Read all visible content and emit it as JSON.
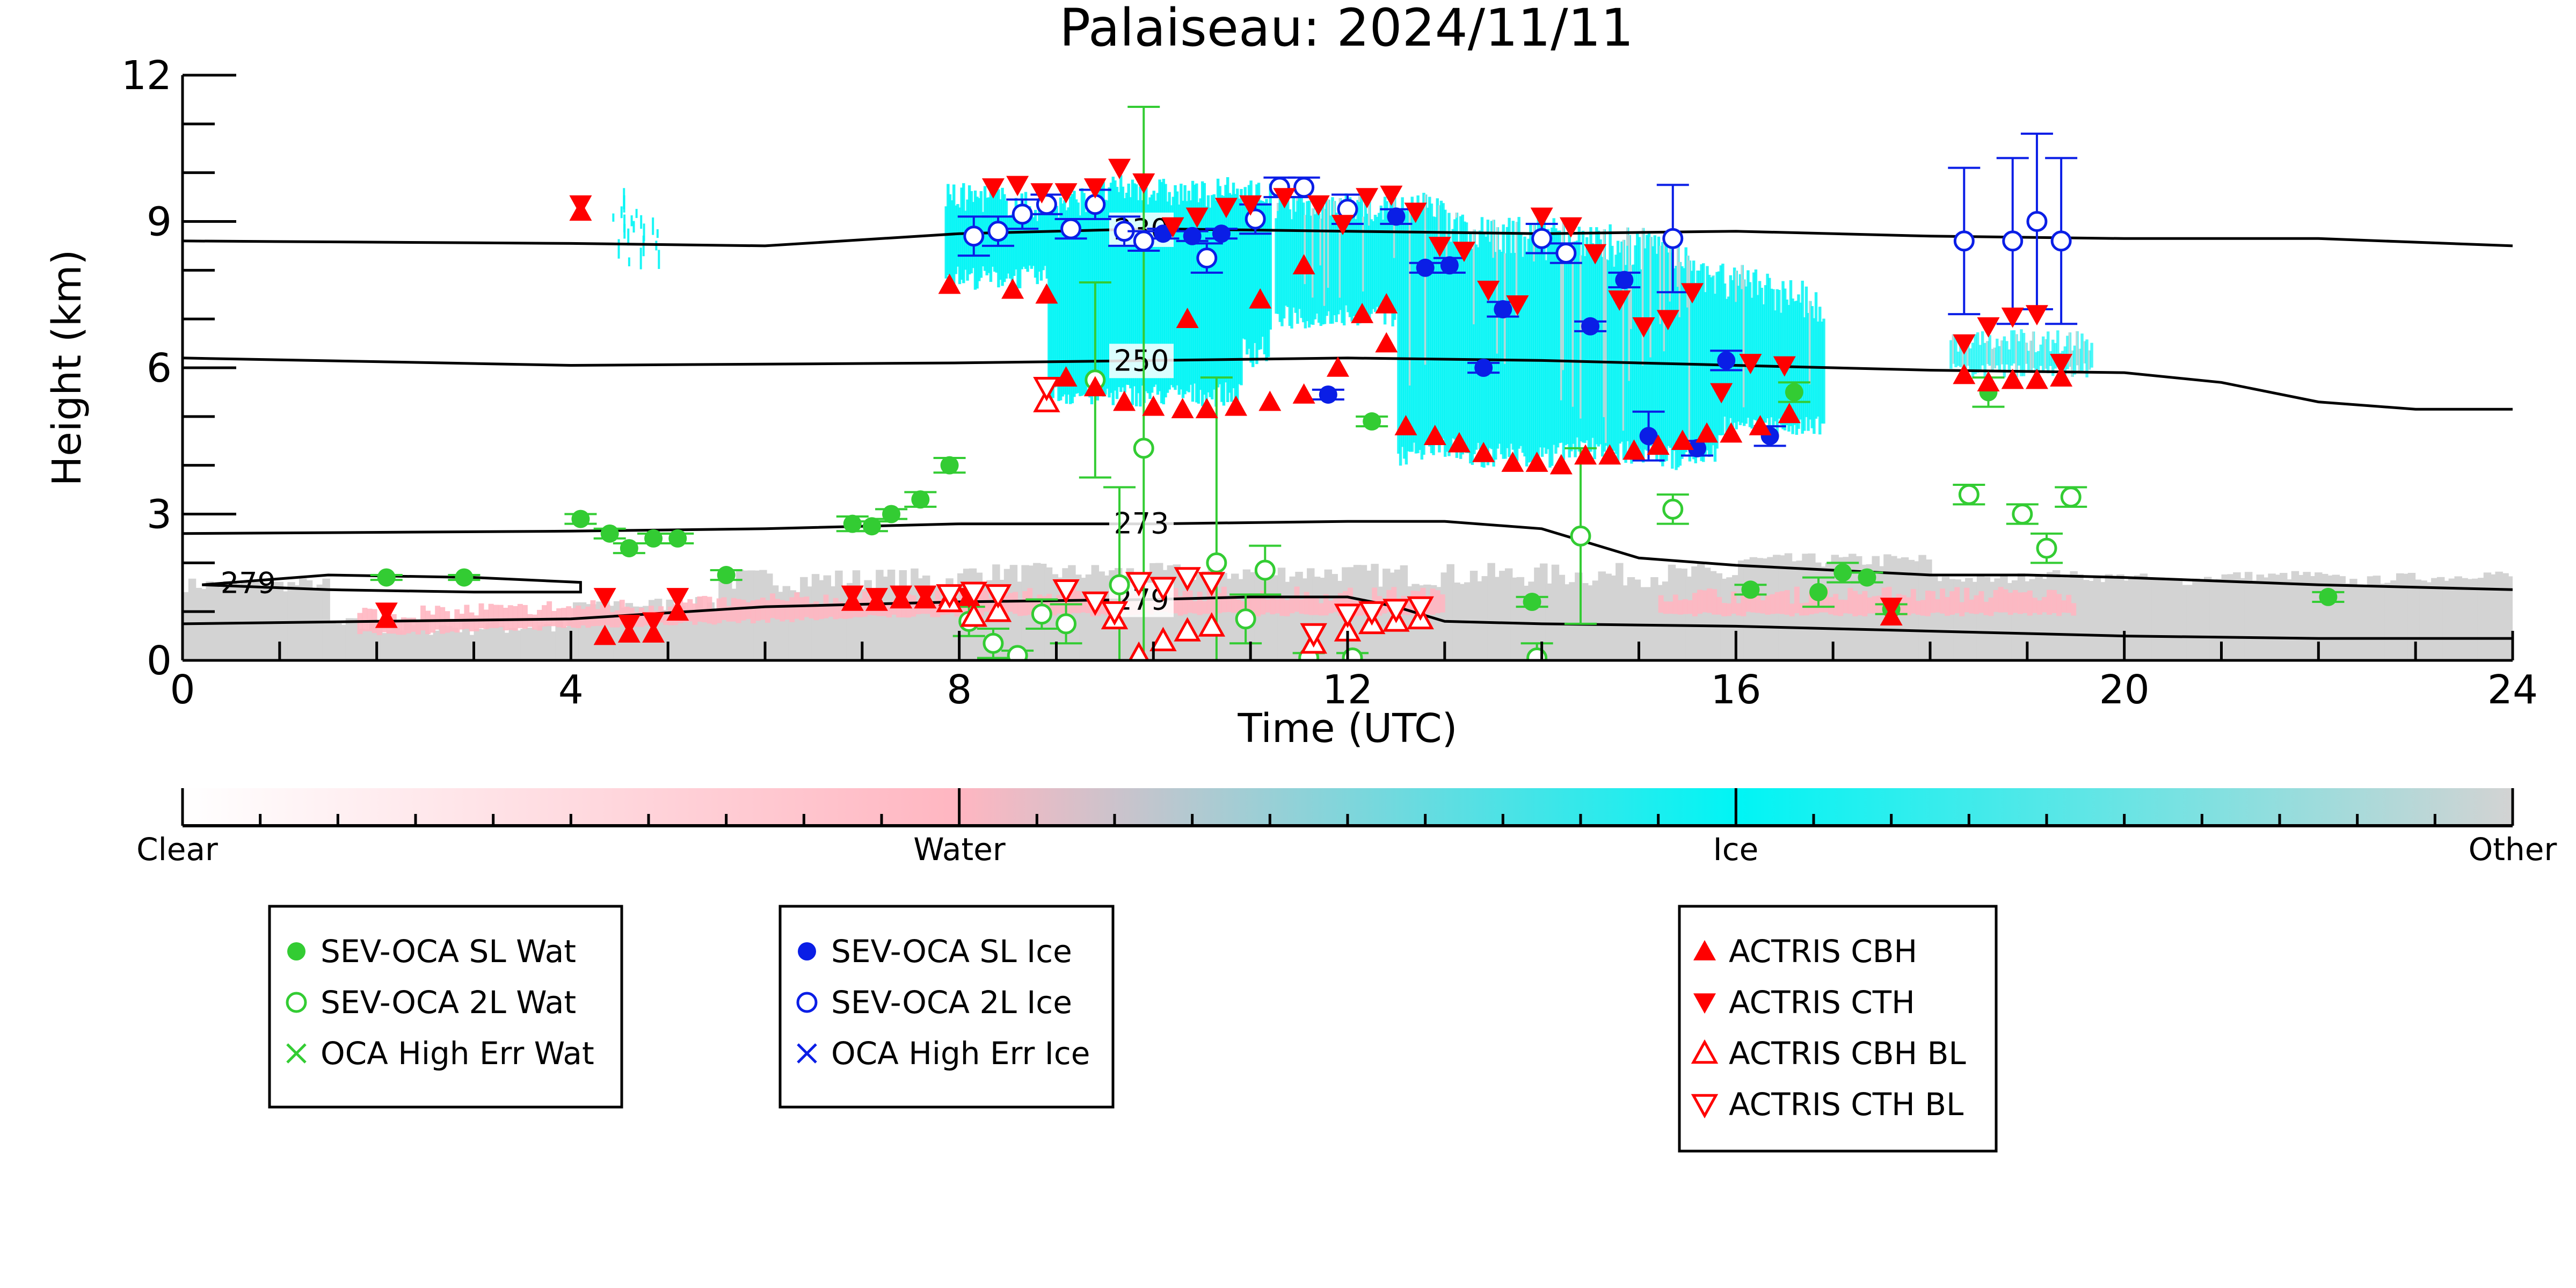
{
  "chart_data": {
    "type": "scatter",
    "title": "Palaiseau: 2024/11/11",
    "xlabel": "Time (UTC)",
    "ylabel": "Height (km)",
    "xlim": [
      0,
      24
    ],
    "ylim": [
      0,
      12
    ],
    "x_ticks": [
      "0",
      "4",
      "8",
      "12",
      "16",
      "20",
      "24"
    ],
    "y_ticks": [
      "0",
      "3",
      "6",
      "9",
      "12"
    ],
    "grid": false,
    "colorbar": {
      "labels": [
        "Clear",
        "Water",
        "Ice",
        "Other"
      ],
      "colors": [
        "#ffffff",
        "#ffb6c1",
        "#00f5f5",
        "#d3d3d3"
      ]
    },
    "legends": [
      {
        "placement": "bottom-left",
        "entries": [
          "SEV-OCA SL Wat",
          "SEV-OCA 2L Wat",
          "OCA High Err Wat"
        ]
      },
      {
        "placement": "bottom-center",
        "entries": [
          "SEV-OCA SL Ice",
          "SEV-OCA 2L Ice",
          "OCA High Err Ice"
        ]
      },
      {
        "placement": "bottom-right",
        "entries": [
          "ACTRIS CBH",
          "ACTRIS CTH",
          "ACTRIS CBH BL",
          "ACTRIS CTH BL"
        ]
      }
    ],
    "contours": [
      {
        "label": "230",
        "label_x": 9.6,
        "points": [
          [
            0,
            8.6
          ],
          [
            4,
            8.55
          ],
          [
            6,
            8.5
          ],
          [
            8,
            8.75
          ],
          [
            10,
            8.85
          ],
          [
            12,
            8.8
          ],
          [
            14,
            8.75
          ],
          [
            16,
            8.8
          ],
          [
            18,
            8.7
          ],
          [
            20,
            8.65
          ],
          [
            22,
            8.65
          ],
          [
            24,
            8.5
          ]
        ]
      },
      {
        "label": "250",
        "label_x": 9.6,
        "points": [
          [
            0,
            6.2
          ],
          [
            4,
            6.05
          ],
          [
            8,
            6.1
          ],
          [
            10,
            6.15
          ],
          [
            12,
            6.2
          ],
          [
            14,
            6.15
          ],
          [
            16,
            6.05
          ],
          [
            18,
            5.95
          ],
          [
            20,
            5.9
          ],
          [
            21,
            5.7
          ],
          [
            22,
            5.3
          ],
          [
            23,
            5.15
          ],
          [
            24,
            5.15
          ]
        ]
      },
      {
        "label": "273",
        "label_x": 9.6,
        "points": [
          [
            0,
            2.6
          ],
          [
            4,
            2.65
          ],
          [
            6,
            2.7
          ],
          [
            8,
            2.8
          ],
          [
            10,
            2.8
          ],
          [
            12,
            2.85
          ],
          [
            13,
            2.85
          ],
          [
            14,
            2.7
          ],
          [
            15,
            2.1
          ],
          [
            16,
            1.95
          ],
          [
            17,
            1.85
          ],
          [
            18,
            1.75
          ],
          [
            19,
            1.75
          ],
          [
            20,
            1.7
          ],
          [
            22,
            1.55
          ],
          [
            24,
            1.45
          ]
        ]
      },
      {
        "label": "279",
        "label_x": 9.6,
        "points": [
          [
            0,
            0.75
          ],
          [
            2,
            0.8
          ],
          [
            4,
            0.85
          ],
          [
            6,
            1.1
          ],
          [
            8,
            1.2
          ],
          [
            10,
            1.25
          ],
          [
            11,
            1.3
          ],
          [
            12,
            1.3
          ],
          [
            12.5,
            1.1
          ],
          [
            13,
            0.8
          ],
          [
            14,
            0.75
          ],
          [
            16,
            0.7
          ],
          [
            18,
            0.6
          ],
          [
            20,
            0.5
          ],
          [
            22,
            0.45
          ],
          [
            24,
            0.45
          ]
        ]
      },
      {
        "label": "279",
        "label_x": 0.4,
        "points": [
          [
            0.2,
            1.55
          ],
          [
            1.5,
            1.75
          ],
          [
            3,
            1.7
          ],
          [
            4.1,
            1.6
          ],
          [
            4.1,
            1.4
          ],
          [
            3,
            1.4
          ],
          [
            1.5,
            1.45
          ],
          [
            0.2,
            1.55
          ]
        ]
      }
    ],
    "series": [
      {
        "name": "SEV-OCA SL Wat",
        "marker": "filled-circle",
        "color": "#33cc33",
        "x": [
          2.1,
          2.9,
          4.1,
          4.4,
          4.6,
          4.85,
          5.1,
          5.6,
          6.9,
          7.1,
          7.3,
          7.6,
          7.9,
          12.25,
          13.9,
          16.15,
          16.6,
          16.85,
          17.1,
          17.35,
          17.6,
          18.6,
          22.1
        ],
        "y": [
          1.7,
          1.7,
          2.9,
          2.6,
          2.3,
          2.5,
          2.5,
          1.75,
          2.8,
          2.75,
          3.0,
          3.3,
          4.0,
          4.9,
          1.2,
          1.45,
          5.5,
          1.4,
          1.8,
          1.7,
          1.05,
          5.5,
          1.3
        ],
        "err": [
          0.05,
          0.05,
          0.1,
          0.1,
          0.1,
          0.1,
          0.1,
          0.1,
          0.15,
          0.1,
          0.1,
          0.15,
          0.15,
          0.1,
          0.1,
          0.1,
          0.2,
          0.3,
          0.2,
          0.1,
          0.1,
          0.3,
          0.1
        ]
      },
      {
        "name": "SEV-OCA 2L Wat",
        "marker": "open-circle",
        "color": "#33cc33",
        "x": [
          8.1,
          8.35,
          8.6,
          8.85,
          9.1,
          9.4,
          9.65,
          9.9,
          10.65,
          10.95,
          11.15,
          11.6,
          12.05,
          13.95,
          14.4,
          15.35,
          18.4,
          18.95,
          19.2,
          19.45
        ],
        "y": [
          0.8,
          0.35,
          0.1,
          0.95,
          0.75,
          5.75,
          1.55,
          4.35,
          2.0,
          0.85,
          1.85,
          0.05,
          0.05,
          0.05,
          2.55,
          3.1,
          3.4,
          3.0,
          2.3,
          3.35
        ],
        "err": [
          0.3,
          0.3,
          0.1,
          0.3,
          0.4,
          2.0,
          2.0,
          7.0,
          3.8,
          0.5,
          0.5,
          0.1,
          0.1,
          0.3,
          1.8,
          0.3,
          0.2,
          0.2,
          0.3,
          0.2
        ]
      },
      {
        "name": "OCA High Err Wat",
        "marker": "x",
        "color": "#33cc33",
        "x": [],
        "y": []
      },
      {
        "name": "SEV-OCA SL Ice",
        "marker": "filled-circle",
        "color": "#0a1ee6",
        "x": [
          10.1,
          10.4,
          10.7,
          11.8,
          12.5,
          12.8,
          13.05,
          13.4,
          13.6,
          14.5,
          14.85,
          15.1,
          15.6,
          15.9,
          16.35
        ],
        "y": [
          8.75,
          8.7,
          8.75,
          5.45,
          9.1,
          8.05,
          8.1,
          6.0,
          7.2,
          6.85,
          7.8,
          4.6,
          4.35,
          6.15,
          4.6
        ],
        "err": [
          0.1,
          0.1,
          0.1,
          0.1,
          0.15,
          0.1,
          0.15,
          0.1,
          0.15,
          0.1,
          0.15,
          0.5,
          0.15,
          0.2,
          0.2
        ]
      },
      {
        "name": "SEV-OCA 2L Ice",
        "marker": "open-circle",
        "color": "#0a1ee6",
        "x": [
          8.15,
          8.4,
          8.65,
          8.9,
          9.15,
          9.4,
          9.7,
          9.9,
          10.55,
          11.05,
          11.3,
          11.55,
          12.0,
          14.0,
          14.25,
          15.35,
          18.35,
          18.85,
          19.1,
          19.35
        ],
        "y": [
          8.7,
          8.8,
          9.15,
          9.35,
          8.85,
          9.35,
          8.8,
          8.6,
          8.25,
          9.05,
          9.7,
          9.7,
          9.25,
          8.65,
          8.35,
          8.65,
          8.6,
          8.6,
          9.0,
          8.6
        ],
        "err": [
          0.4,
          0.3,
          0.3,
          0.2,
          0.2,
          0.3,
          0.3,
          0.2,
          0.3,
          0.3,
          0.2,
          0.2,
          0.3,
          0.3,
          0.2,
          1.1,
          1.5,
          1.7,
          1.8,
          1.7
        ]
      },
      {
        "name": "OCA High Err Ice",
        "marker": "x",
        "color": "#0a1ee6",
        "x": [],
        "y": []
      },
      {
        "name": "ACTRIS CBH",
        "marker": "triangle-up",
        "color": "#ff0000",
        "x": [
          4.1,
          2.1,
          4.35,
          4.6,
          4.85,
          5.1,
          6.9,
          7.15,
          7.4,
          7.65,
          7.9,
          8.1,
          9.1,
          9.4,
          9.7,
          10.0,
          10.3,
          10.55,
          10.85,
          11.2,
          11.55,
          11.9,
          12.15,
          12.4,
          12.6,
          12.9,
          13.15,
          13.4,
          13.7,
          13.95,
          14.2,
          14.45,
          14.7,
          14.95,
          15.2,
          15.45,
          15.7,
          15.95,
          16.25,
          16.55,
          17.6,
          18.35,
          18.6,
          18.85,
          19.1,
          19.35,
          7.9,
          8.55,
          8.9,
          11.1,
          11.55,
          10.35,
          12.4
        ],
        "y": [
          9.2,
          0.85,
          0.5,
          0.55,
          0.55,
          1.0,
          1.2,
          1.2,
          1.25,
          1.25,
          1.3,
          1.3,
          5.8,
          5.6,
          5.3,
          5.2,
          5.15,
          5.15,
          5.2,
          5.3,
          5.45,
          6.0,
          7.1,
          6.5,
          4.8,
          4.6,
          4.45,
          4.25,
          4.05,
          4.05,
          4.0,
          4.2,
          4.2,
          4.3,
          4.4,
          4.5,
          4.65,
          4.65,
          4.8,
          5.05,
          0.9,
          5.85,
          5.7,
          5.75,
          5.75,
          5.8,
          7.7,
          7.6,
          7.5,
          7.4,
          8.1,
          7.0,
          7.3
        ]
      },
      {
        "name": "ACTRIS CTH",
        "marker": "triangle-down",
        "color": "#ff0000",
        "x": [
          4.1,
          2.1,
          4.35,
          4.6,
          4.85,
          5.1,
          6.9,
          7.15,
          7.4,
          7.65,
          7.9,
          8.1,
          8.35,
          8.6,
          8.85,
          9.1,
          9.4,
          9.65,
          9.9,
          10.2,
          10.45,
          10.75,
          11.0,
          11.35,
          11.7,
          11.95,
          12.2,
          12.45,
          12.7,
          12.95,
          13.2,
          13.45,
          13.75,
          14.0,
          14.3,
          14.55,
          14.8,
          15.05,
          15.3,
          15.55,
          15.85,
          16.15,
          16.5,
          17.6,
          18.35,
          18.6,
          18.85,
          19.1,
          19.35
        ],
        "y": [
          9.35,
          1.0,
          1.3,
          0.75,
          0.8,
          1.3,
          1.35,
          1.3,
          1.35,
          1.35,
          1.35,
          1.3,
          9.7,
          9.75,
          9.6,
          9.6,
          9.7,
          10.1,
          9.8,
          8.9,
          9.1,
          9.3,
          9.35,
          9.5,
          9.35,
          8.95,
          9.5,
          9.55,
          9.2,
          8.5,
          8.4,
          7.6,
          7.3,
          9.1,
          8.9,
          8.35,
          7.4,
          6.85,
          7.0,
          7.55,
          5.5,
          6.1,
          6.05,
          1.1,
          6.5,
          6.85,
          7.05,
          7.1,
          6.1
        ]
      },
      {
        "name": "ACTRIS CBH BL",
        "marker": "open-triangle-up",
        "color": "#ff0000",
        "x": [
          7.9,
          8.15,
          8.4,
          8.9,
          9.6,
          9.85,
          10.1,
          10.35,
          10.6,
          11.65,
          12.0,
          12.25,
          12.5,
          12.75
        ],
        "y": [
          1.2,
          0.9,
          1.0,
          5.3,
          0.85,
          0.1,
          0.4,
          0.6,
          0.7,
          0.35,
          0.6,
          0.75,
          0.8,
          0.85
        ]
      },
      {
        "name": "ACTRIS CTH BL",
        "marker": "open-triangle-down",
        "color": "#ff0000",
        "x": [
          7.9,
          8.15,
          8.4,
          8.9,
          9.1,
          9.4,
          9.6,
          9.85,
          10.1,
          10.35,
          10.6,
          11.65,
          12.0,
          12.25,
          12.5,
          12.75
        ],
        "y": [
          1.35,
          1.4,
          1.35,
          5.6,
          1.45,
          1.2,
          1.0,
          1.6,
          1.5,
          1.7,
          1.6,
          0.55,
          0.95,
          1.0,
          1.05,
          1.1
        ]
      }
    ]
  }
}
